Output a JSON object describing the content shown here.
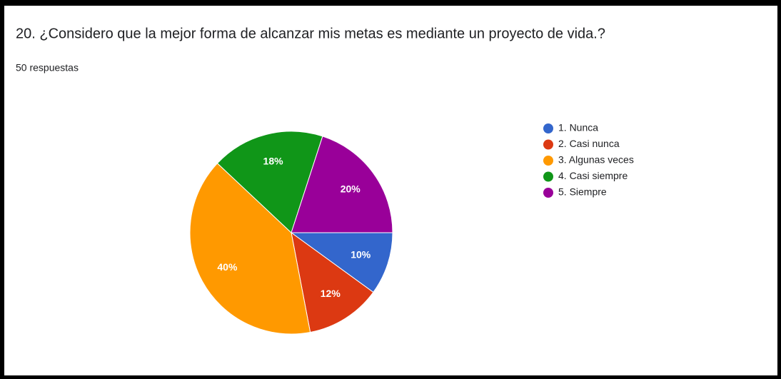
{
  "chart_data": {
    "type": "pie",
    "title": "20. ¿Considero que la mejor forma de alcanzar mis metas es mediante un proyecto de vida.?",
    "subtitle": "50 respuestas",
    "categories": [
      "1. Nunca",
      "2. Casi nunca",
      "3. Algunas veces",
      "4. Casi siempre",
      "5. Siempre"
    ],
    "values": [
      10,
      12,
      40,
      18,
      20
    ],
    "value_labels": [
      "10%",
      "12%",
      "40%",
      "18%",
      "20%"
    ],
    "colors": [
      "#3366cc",
      "#dc3912",
      "#ff9900",
      "#109618",
      "#990099"
    ],
    "legend": "right"
  }
}
